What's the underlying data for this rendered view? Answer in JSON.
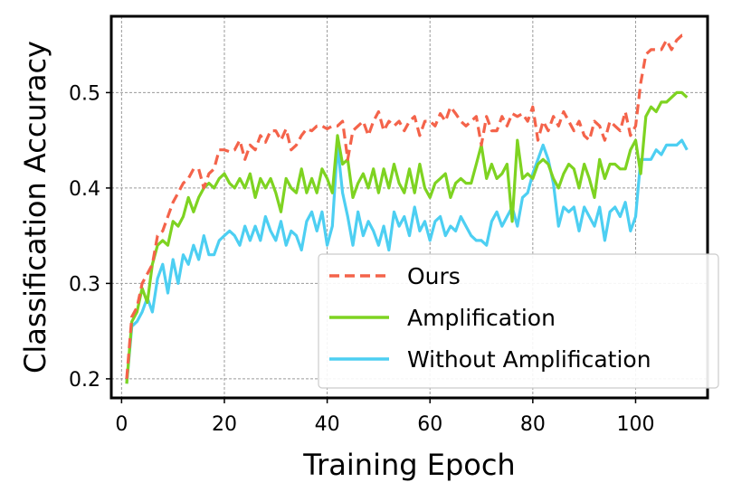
{
  "chart_data": {
    "type": "line",
    "title": "",
    "xlabel": "Training Epoch",
    "ylabel": "Classification Accuracy",
    "xlim": [
      -2,
      114
    ],
    "ylim": [
      0.18,
      0.58
    ],
    "x_ticks": [
      0,
      20,
      40,
      60,
      80,
      100
    ],
    "x_tick_labels": [
      "0",
      "20",
      "40",
      "60",
      "80",
      "100"
    ],
    "y_ticks": [
      0.2,
      0.3,
      0.4,
      0.5
    ],
    "y_tick_labels": [
      "0.2",
      "0.3",
      "0.4",
      "0.5"
    ],
    "grid": true,
    "legend_position": "lower-right",
    "x": [
      1,
      2,
      3,
      4,
      5,
      6,
      7,
      8,
      9,
      10,
      11,
      12,
      13,
      14,
      15,
      16,
      17,
      18,
      19,
      20,
      21,
      22,
      23,
      24,
      25,
      26,
      27,
      28,
      29,
      30,
      31,
      32,
      33,
      34,
      35,
      36,
      37,
      38,
      39,
      40,
      41,
      42,
      43,
      44,
      45,
      46,
      47,
      48,
      49,
      50,
      51,
      52,
      53,
      54,
      55,
      56,
      57,
      58,
      59,
      60,
      61,
      62,
      63,
      64,
      65,
      66,
      67,
      68,
      69,
      70,
      71,
      72,
      73,
      74,
      75,
      76,
      77,
      78,
      79,
      80,
      81,
      82,
      83,
      84,
      85,
      86,
      87,
      88,
      89,
      90,
      91,
      92,
      93,
      94,
      95,
      96,
      97,
      98,
      99,
      100,
      101,
      102,
      103,
      104,
      105,
      106,
      107,
      108,
      109,
      110
    ],
    "series": [
      {
        "name": "Ours",
        "color": "#f4634a",
        "dash": true,
        "values": [
          0.2,
          0.265,
          0.275,
          0.3,
          0.31,
          0.32,
          0.35,
          0.355,
          0.37,
          0.385,
          0.395,
          0.405,
          0.41,
          0.42,
          0.42,
          0.4,
          0.415,
          0.42,
          0.44,
          0.44,
          0.438,
          0.44,
          0.45,
          0.43,
          0.445,
          0.44,
          0.455,
          0.448,
          0.46,
          0.46,
          0.45,
          0.462,
          0.44,
          0.445,
          0.455,
          0.462,
          0.46,
          0.465,
          0.465,
          0.462,
          0.465,
          0.465,
          0.47,
          0.43,
          0.46,
          0.465,
          0.47,
          0.455,
          0.47,
          0.48,
          0.46,
          0.47,
          0.465,
          0.47,
          0.46,
          0.47,
          0.475,
          0.455,
          0.47,
          0.47,
          0.465,
          0.478,
          0.47,
          0.485,
          0.478,
          0.47,
          0.465,
          0.47,
          0.475,
          0.445,
          0.475,
          0.46,
          0.46,
          0.475,
          0.465,
          0.478,
          0.475,
          0.478,
          0.47,
          0.485,
          0.45,
          0.47,
          0.46,
          0.475,
          0.465,
          0.48,
          0.47,
          0.46,
          0.47,
          0.455,
          0.45,
          0.47,
          0.465,
          0.45,
          0.47,
          0.465,
          0.46,
          0.48,
          0.455,
          0.465,
          0.51,
          0.54,
          0.545,
          0.545,
          0.545,
          0.555,
          0.545,
          0.555,
          0.56,
          0.56
        ]
      },
      {
        "name": "Amplification",
        "color": "#7ed321",
        "dash": false,
        "values": [
          0.195,
          0.26,
          0.27,
          0.295,
          0.28,
          0.32,
          0.34,
          0.345,
          0.34,
          0.365,
          0.36,
          0.37,
          0.39,
          0.375,
          0.39,
          0.4,
          0.405,
          0.4,
          0.41,
          0.415,
          0.405,
          0.4,
          0.41,
          0.4,
          0.415,
          0.39,
          0.41,
          0.4,
          0.41,
          0.395,
          0.375,
          0.41,
          0.4,
          0.395,
          0.42,
          0.395,
          0.41,
          0.395,
          0.42,
          0.41,
          0.395,
          0.455,
          0.425,
          0.43,
          0.39,
          0.405,
          0.415,
          0.4,
          0.42,
          0.395,
          0.42,
          0.4,
          0.425,
          0.405,
          0.395,
          0.42,
          0.395,
          0.425,
          0.4,
          0.39,
          0.405,
          0.41,
          0.415,
          0.39,
          0.405,
          0.41,
          0.405,
          0.405,
          0.425,
          0.445,
          0.41,
          0.425,
          0.41,
          0.415,
          0.425,
          0.365,
          0.45,
          0.41,
          0.415,
          0.41,
          0.425,
          0.43,
          0.425,
          0.41,
          0.4,
          0.415,
          0.425,
          0.42,
          0.4,
          0.425,
          0.41,
          0.39,
          0.43,
          0.41,
          0.425,
          0.425,
          0.42,
          0.42,
          0.44,
          0.45,
          0.415,
          0.475,
          0.485,
          0.48,
          0.49,
          0.49,
          0.495,
          0.5,
          0.5,
          0.495
        ]
      },
      {
        "name": "Without Amplification",
        "color": "#4dcff2",
        "dash": false,
        "values": [
          0.195,
          0.255,
          0.26,
          0.27,
          0.285,
          0.27,
          0.305,
          0.32,
          0.29,
          0.325,
          0.3,
          0.33,
          0.32,
          0.34,
          0.325,
          0.35,
          0.33,
          0.33,
          0.345,
          0.35,
          0.355,
          0.35,
          0.34,
          0.36,
          0.345,
          0.36,
          0.345,
          0.37,
          0.355,
          0.345,
          0.365,
          0.34,
          0.355,
          0.35,
          0.335,
          0.365,
          0.375,
          0.355,
          0.375,
          0.34,
          0.36,
          0.445,
          0.395,
          0.37,
          0.34,
          0.375,
          0.35,
          0.365,
          0.355,
          0.34,
          0.36,
          0.335,
          0.375,
          0.36,
          0.37,
          0.35,
          0.38,
          0.355,
          0.365,
          0.345,
          0.365,
          0.37,
          0.35,
          0.36,
          0.355,
          0.37,
          0.36,
          0.35,
          0.345,
          0.345,
          0.34,
          0.365,
          0.375,
          0.36,
          0.37,
          0.38,
          0.36,
          0.39,
          0.395,
          0.415,
          0.43,
          0.445,
          0.43,
          0.405,
          0.36,
          0.38,
          0.375,
          0.38,
          0.355,
          0.38,
          0.37,
          0.36,
          0.38,
          0.345,
          0.375,
          0.38,
          0.37,
          0.385,
          0.355,
          0.37,
          0.43,
          0.43,
          0.43,
          0.44,
          0.435,
          0.445,
          0.445,
          0.445,
          0.45,
          0.44
        ]
      }
    ]
  }
}
